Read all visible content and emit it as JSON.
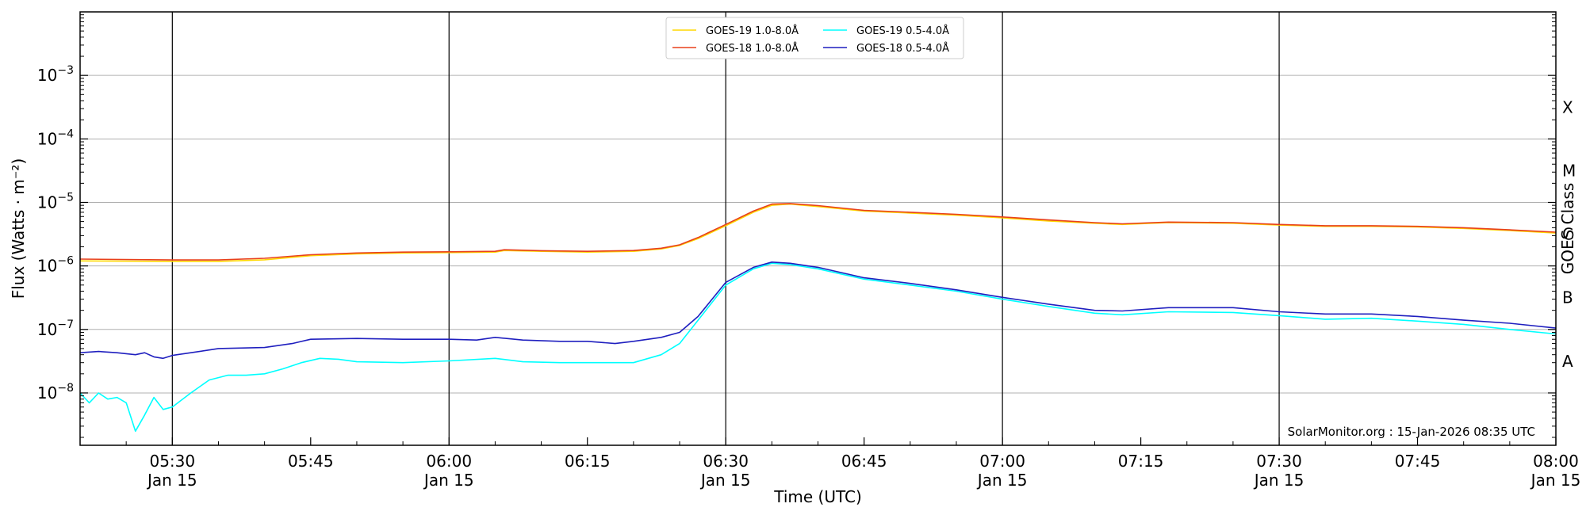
{
  "chart_data": {
    "type": "line",
    "xlabel": "Time (UTC)",
    "ylabel": "Flux (Watts · m⁻²)",
    "right_axis_label": "GOES Class",
    "x_range": [
      "05:20",
      "08:00"
    ],
    "y_scale": "log",
    "ylim": [
      1.5e-09,
      0.01
    ],
    "grid": "horizontal at each decade",
    "vertical_lines_at": [
      "05:30",
      "06:00",
      "06:30",
      "07:00",
      "07:30"
    ],
    "x_ticks": [
      {
        "t": "05:30",
        "label": "05:30",
        "date": "Jan 15"
      },
      {
        "t": "05:45",
        "label": "05:45",
        "date": ""
      },
      {
        "t": "06:00",
        "label": "06:00",
        "date": "Jan 15"
      },
      {
        "t": "06:15",
        "label": "06:15",
        "date": ""
      },
      {
        "t": "06:30",
        "label": "06:30",
        "date": "Jan 15"
      },
      {
        "t": "06:45",
        "label": "06:45",
        "date": ""
      },
      {
        "t": "07:00",
        "label": "07:00",
        "date": "Jan 15"
      },
      {
        "t": "07:15",
        "label": "07:15",
        "date": ""
      },
      {
        "t": "07:30",
        "label": "07:30",
        "date": "Jan 15"
      },
      {
        "t": "07:45",
        "label": "07:45",
        "date": ""
      },
      {
        "t": "08:00",
        "label": "08:00",
        "date": "Jan 15"
      }
    ],
    "y_ticks": [
      {
        "value": 1e-08,
        "exp": "−8"
      },
      {
        "value": 1e-07,
        "exp": "−7"
      },
      {
        "value": 1e-06,
        "exp": "−6"
      },
      {
        "value": 1e-05,
        "exp": "−5"
      },
      {
        "value": 0.0001,
        "exp": "−4"
      },
      {
        "value": 0.001,
        "exp": "−3"
      }
    ],
    "goes_classes": [
      {
        "label": "A",
        "value": 3.16e-08
      },
      {
        "label": "B",
        "value": 3.16e-07
      },
      {
        "label": "C",
        "value": 3.16e-06
      },
      {
        "label": "M",
        "value": 3.16e-05
      },
      {
        "label": "X",
        "value": 0.000316
      }
    ],
    "legend_position": "top-center",
    "series": [
      {
        "name": "GOES-19 1.0-8.0Å",
        "color": "#ffd700",
        "points": [
          [
            "05:20",
            1.2e-06
          ],
          [
            "05:30",
            1.18e-06
          ],
          [
            "05:35",
            1.18e-06
          ],
          [
            "05:40",
            1.25e-06
          ],
          [
            "05:45",
            1.45e-06
          ],
          [
            "05:50",
            1.55e-06
          ],
          [
            "05:55",
            1.6e-06
          ],
          [
            "06:00",
            1.62e-06
          ],
          [
            "06:05",
            1.65e-06
          ],
          [
            "06:06",
            1.75e-06
          ],
          [
            "06:10",
            1.7e-06
          ],
          [
            "06:15",
            1.65e-06
          ],
          [
            "06:20",
            1.7e-06
          ],
          [
            "06:23",
            1.85e-06
          ],
          [
            "06:25",
            2.1e-06
          ],
          [
            "06:27",
            2.7e-06
          ],
          [
            "06:30",
            4.3e-06
          ],
          [
            "06:33",
            7e-06
          ],
          [
            "06:35",
            9e-06
          ],
          [
            "06:37",
            9.4e-06
          ],
          [
            "06:40",
            8.6e-06
          ],
          [
            "06:45",
            7.3e-06
          ],
          [
            "06:50",
            6.8e-06
          ],
          [
            "06:55",
            6.3e-06
          ],
          [
            "07:00",
            5.7e-06
          ],
          [
            "07:05",
            5.1e-06
          ],
          [
            "07:10",
            4.7e-06
          ],
          [
            "07:13",
            4.5e-06
          ],
          [
            "07:18",
            4.8e-06
          ],
          [
            "07:25",
            4.7e-06
          ],
          [
            "07:30",
            4.4e-06
          ],
          [
            "07:35",
            4.2e-06
          ],
          [
            "07:40",
            4.2e-06
          ],
          [
            "07:45",
            4.1e-06
          ],
          [
            "07:50",
            3.9e-06
          ],
          [
            "07:55",
            3.6e-06
          ],
          [
            "08:00",
            3.3e-06
          ]
        ]
      },
      {
        "name": "GOES-18 1.0-8.0Å",
        "color": "#e8401c",
        "points": [
          [
            "05:20",
            1.28e-06
          ],
          [
            "05:30",
            1.24e-06
          ],
          [
            "05:35",
            1.24e-06
          ],
          [
            "05:40",
            1.32e-06
          ],
          [
            "05:45",
            1.5e-06
          ],
          [
            "05:50",
            1.6e-06
          ],
          [
            "05:55",
            1.65e-06
          ],
          [
            "06:00",
            1.67e-06
          ],
          [
            "06:05",
            1.7e-06
          ],
          [
            "06:06",
            1.8e-06
          ],
          [
            "06:10",
            1.74e-06
          ],
          [
            "06:15",
            1.7e-06
          ],
          [
            "06:20",
            1.75e-06
          ],
          [
            "06:23",
            1.9e-06
          ],
          [
            "06:25",
            2.15e-06
          ],
          [
            "06:27",
            2.8e-06
          ],
          [
            "06:30",
            4.5e-06
          ],
          [
            "06:33",
            7.3e-06
          ],
          [
            "06:35",
            9.4e-06
          ],
          [
            "06:37",
            9.6e-06
          ],
          [
            "06:40",
            8.9e-06
          ],
          [
            "06:45",
            7.5e-06
          ],
          [
            "06:50",
            7e-06
          ],
          [
            "06:55",
            6.5e-06
          ],
          [
            "07:00",
            5.9e-06
          ],
          [
            "07:05",
            5.3e-06
          ],
          [
            "07:10",
            4.8e-06
          ],
          [
            "07:13",
            4.6e-06
          ],
          [
            "07:18",
            4.9e-06
          ],
          [
            "07:25",
            4.8e-06
          ],
          [
            "07:30",
            4.5e-06
          ],
          [
            "07:35",
            4.3e-06
          ],
          [
            "07:40",
            4.3e-06
          ],
          [
            "07:45",
            4.2e-06
          ],
          [
            "07:50",
            4e-06
          ],
          [
            "07:55",
            3.7e-06
          ],
          [
            "08:00",
            3.4e-06
          ]
        ]
      },
      {
        "name": "GOES-19 0.5-4.0Å",
        "color": "#00ffff",
        "points": [
          [
            "05:20",
            1e-08
          ],
          [
            "05:21",
            7e-09
          ],
          [
            "05:22",
            1e-08
          ],
          [
            "05:23",
            8e-09
          ],
          [
            "05:24",
            8.5e-09
          ],
          [
            "05:25",
            7e-09
          ],
          [
            "05:26",
            2.5e-09
          ],
          [
            "05:27",
            4.5e-09
          ],
          [
            "05:28",
            8.5e-09
          ],
          [
            "05:29",
            5.5e-09
          ],
          [
            "05:30",
            6e-09
          ],
          [
            "05:32",
            1e-08
          ],
          [
            "05:34",
            1.6e-08
          ],
          [
            "05:36",
            1.9e-08
          ],
          [
            "05:38",
            1.9e-08
          ],
          [
            "05:40",
            2e-08
          ],
          [
            "05:42",
            2.4e-08
          ],
          [
            "05:44",
            3e-08
          ],
          [
            "05:46",
            3.5e-08
          ],
          [
            "05:48",
            3.4e-08
          ],
          [
            "05:50",
            3.1e-08
          ],
          [
            "05:55",
            3e-08
          ],
          [
            "06:00",
            3.2e-08
          ],
          [
            "06:05",
            3.5e-08
          ],
          [
            "06:08",
            3.1e-08
          ],
          [
            "06:12",
            3e-08
          ],
          [
            "06:15",
            3e-08
          ],
          [
            "06:20",
            3e-08
          ],
          [
            "06:23",
            4e-08
          ],
          [
            "06:25",
            6e-08
          ],
          [
            "06:27",
            1.4e-07
          ],
          [
            "06:30",
            5e-07
          ],
          [
            "06:33",
            9e-07
          ],
          [
            "06:35",
            1.1e-06
          ],
          [
            "06:37",
            1.05e-06
          ],
          [
            "06:40",
            9e-07
          ],
          [
            "06:45",
            6.2e-07
          ],
          [
            "06:50",
            5e-07
          ],
          [
            "06:55",
            4e-07
          ],
          [
            "07:00",
            3e-07
          ],
          [
            "07:05",
            2.3e-07
          ],
          [
            "07:10",
            1.8e-07
          ],
          [
            "07:13",
            1.7e-07
          ],
          [
            "07:18",
            1.9e-07
          ],
          [
            "07:25",
            1.85e-07
          ],
          [
            "07:30",
            1.65e-07
          ],
          [
            "07:35",
            1.45e-07
          ],
          [
            "07:40",
            1.5e-07
          ],
          [
            "07:45",
            1.35e-07
          ],
          [
            "07:50",
            1.2e-07
          ],
          [
            "07:55",
            1e-07
          ],
          [
            "08:00",
            8.5e-08
          ]
        ]
      },
      {
        "name": "GOES-18 0.5-4.0Å",
        "color": "#1f1fbf",
        "points": [
          [
            "05:20",
            4.3e-08
          ],
          [
            "05:22",
            4.5e-08
          ],
          [
            "05:24",
            4.3e-08
          ],
          [
            "05:26",
            4e-08
          ],
          [
            "05:27",
            4.3e-08
          ],
          [
            "05:28",
            3.7e-08
          ],
          [
            "05:29",
            3.5e-08
          ],
          [
            "05:30",
            3.9e-08
          ],
          [
            "05:32",
            4.3e-08
          ],
          [
            "05:35",
            5e-08
          ],
          [
            "05:40",
            5.2e-08
          ],
          [
            "05:43",
            6e-08
          ],
          [
            "05:45",
            7e-08
          ],
          [
            "05:50",
            7.2e-08
          ],
          [
            "05:55",
            7e-08
          ],
          [
            "06:00",
            7e-08
          ],
          [
            "06:03",
            6.8e-08
          ],
          [
            "06:05",
            7.5e-08
          ],
          [
            "06:08",
            6.8e-08
          ],
          [
            "06:12",
            6.5e-08
          ],
          [
            "06:15",
            6.5e-08
          ],
          [
            "06:18",
            6e-08
          ],
          [
            "06:20",
            6.5e-08
          ],
          [
            "06:23",
            7.5e-08
          ],
          [
            "06:25",
            9e-08
          ],
          [
            "06:27",
            1.6e-07
          ],
          [
            "06:30",
            5.5e-07
          ],
          [
            "06:33",
            9.5e-07
          ],
          [
            "06:35",
            1.15e-06
          ],
          [
            "06:37",
            1.1e-06
          ],
          [
            "06:40",
            9.5e-07
          ],
          [
            "06:45",
            6.5e-07
          ],
          [
            "06:50",
            5.3e-07
          ],
          [
            "06:55",
            4.2e-07
          ],
          [
            "07:00",
            3.2e-07
          ],
          [
            "07:05",
            2.5e-07
          ],
          [
            "07:10",
            2e-07
          ],
          [
            "07:13",
            1.95e-07
          ],
          [
            "07:18",
            2.2e-07
          ],
          [
            "07:25",
            2.2e-07
          ],
          [
            "07:30",
            1.9e-07
          ],
          [
            "07:35",
            1.75e-07
          ],
          [
            "07:40",
            1.75e-07
          ],
          [
            "07:45",
            1.6e-07
          ],
          [
            "07:50",
            1.4e-07
          ],
          [
            "07:55",
            1.25e-07
          ],
          [
            "08:00",
            1.05e-07
          ]
        ]
      }
    ]
  },
  "credit": "SolarMonitor.org : 15-Jan-2026 08:35 UTC"
}
